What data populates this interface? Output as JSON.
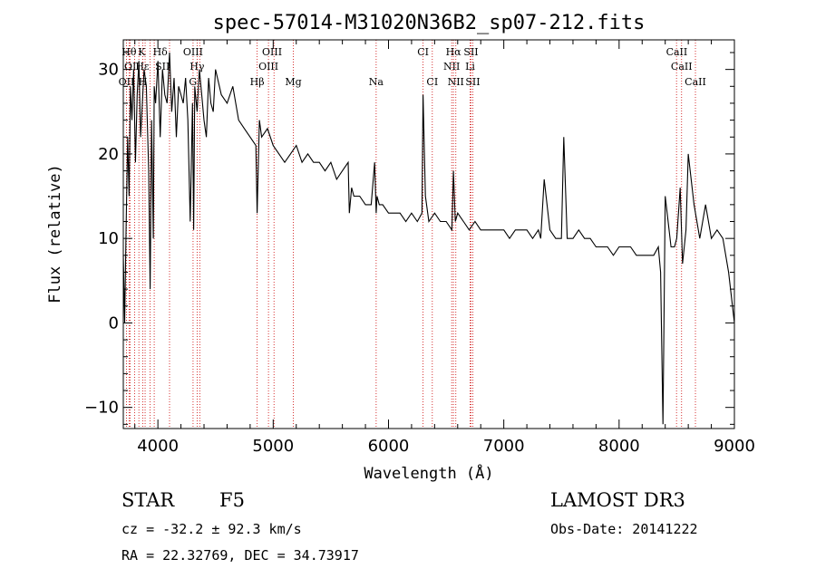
{
  "chart_data": {
    "type": "line",
    "title": "spec-57014-M31020N36B2_sp07-212.fits",
    "xlabel": "Wavelength (Å)",
    "ylabel": "Flux (relative)",
    "xlim": [
      3700,
      9000
    ],
    "ylim": [
      -12.5,
      33.5
    ],
    "xticks": [
      4000,
      5000,
      6000,
      7000,
      8000,
      9000
    ],
    "yticks": [
      -10,
      0,
      10,
      20,
      30
    ],
    "grid": false,
    "spectrum": {
      "x": [
        3700,
        3712,
        3725,
        3738,
        3750,
        3762,
        3775,
        3790,
        3805,
        3820,
        3835,
        3850,
        3865,
        3880,
        3900,
        3920,
        3933,
        3945,
        3960,
        3968,
        3980,
        4000,
        4020,
        4040,
        4060,
        4080,
        4101,
        4120,
        4140,
        4160,
        4180,
        4200,
        4220,
        4240,
        4260,
        4280,
        4300,
        4310,
        4320,
        4340,
        4360,
        4380,
        4400,
        4420,
        4440,
        4460,
        4480,
        4500,
        4550,
        4600,
        4650,
        4700,
        4750,
        4800,
        4850,
        4861,
        4880,
        4900,
        4950,
        5000,
        5050,
        5100,
        5150,
        5200,
        5250,
        5300,
        5350,
        5400,
        5450,
        5500,
        5550,
        5600,
        5650,
        5660,
        5680,
        5700,
        5750,
        5800,
        5850,
        5880,
        5893,
        5900,
        5920,
        5950,
        6000,
        6050,
        6100,
        6150,
        6200,
        6250,
        6290,
        6300,
        6320,
        6350,
        6400,
        6450,
        6500,
        6550,
        6563,
        6580,
        6600,
        6650,
        6700,
        6750,
        6800,
        6850,
        6900,
        6950,
        7000,
        7050,
        7100,
        7150,
        7200,
        7250,
        7300,
        7320,
        7350,
        7400,
        7450,
        7500,
        7520,
        7550,
        7600,
        7650,
        7700,
        7750,
        7800,
        7850,
        7900,
        7950,
        8000,
        8050,
        8100,
        8150,
        8200,
        8250,
        8300,
        8340,
        8360,
        8380,
        8400,
        8450,
        8480,
        8500,
        8530,
        8550,
        8580,
        8600,
        8650,
        8700,
        8750,
        8800,
        8850,
        8900,
        8950,
        9000
      ],
      "y": [
        8,
        0,
        12,
        22,
        15,
        28,
        24,
        30,
        19,
        27,
        31,
        22,
        26,
        30,
        28,
        18,
        4,
        24,
        10,
        28,
        26,
        31,
        22,
        30,
        27,
        26,
        32,
        25,
        29,
        22,
        28,
        27,
        26,
        29,
        24,
        12,
        26,
        11,
        28,
        25,
        30,
        27,
        24,
        22,
        29,
        26,
        25,
        30,
        27,
        26,
        28,
        24,
        23,
        22,
        21,
        13,
        24,
        22,
        23,
        21,
        20,
        19,
        20,
        21,
        19,
        20,
        19,
        19,
        18,
        19,
        17,
        18,
        19,
        13,
        16,
        15,
        15,
        14,
        14,
        19,
        13,
        15,
        14,
        14,
        13,
        13,
        13,
        12,
        13,
        12,
        13,
        27,
        15,
        12,
        13,
        12,
        12,
        11,
        18,
        12,
        13,
        12,
        11,
        12,
        11,
        11,
        11,
        11,
        11,
        10,
        11,
        11,
        11,
        10,
        11,
        10,
        17,
        11,
        10,
        10,
        22,
        10,
        10,
        11,
        10,
        10,
        9,
        9,
        9,
        8,
        9,
        9,
        9,
        8,
        8,
        8,
        8,
        9,
        6,
        -12,
        15,
        9,
        9,
        10,
        16,
        7,
        11,
        20,
        14,
        10,
        14,
        10,
        11,
        10,
        6,
        0
      ]
    },
    "emission_lines": [
      {
        "label": "Hθ",
        "x": 3750,
        "row": 0
      },
      {
        "label": "K",
        "x": 3860,
        "row": 0
      },
      {
        "label": "Hδ",
        "x": 4020,
        "row": 0
      },
      {
        "label": "OIII",
        "x": 4305,
        "row": 0
      },
      {
        "label": "OIII",
        "x": 4990,
        "row": 0
      },
      {
        "label": "CI",
        "x": 6300,
        "row": 0
      },
      {
        "label": "Hα",
        "x": 6563,
        "row": 0
      },
      {
        "label": "SII",
        "x": 6716,
        "row": 0
      },
      {
        "label": "CaII",
        "x": 8500,
        "row": 0
      },
      {
        "label": "OI",
        "x": 3760,
        "row": 1
      },
      {
        "label": "Hε",
        "x": 3865,
        "row": 1
      },
      {
        "label": "SII",
        "x": 4040,
        "row": 1
      },
      {
        "label": "Hγ",
        "x": 4340,
        "row": 1
      },
      {
        "label": "OIII",
        "x": 4959,
        "row": 1
      },
      {
        "label": "NII",
        "x": 6548,
        "row": 1
      },
      {
        "label": "Li",
        "x": 6708,
        "row": 1
      },
      {
        "label": "CaII",
        "x": 8542,
        "row": 1
      },
      {
        "label": "OII",
        "x": 3727,
        "row": 2
      },
      {
        "label": "H",
        "x": 3869,
        "row": 2
      },
      {
        "label": "G",
        "x": 4304,
        "row": 2
      },
      {
        "label": "Hβ",
        "x": 4861,
        "row": 2
      },
      {
        "label": "Mg",
        "x": 5175,
        "row": 2
      },
      {
        "label": "Na",
        "x": 5893,
        "row": 2
      },
      {
        "label": "CI",
        "x": 6380,
        "row": 2
      },
      {
        "label": "NII",
        "x": 6584,
        "row": 2
      },
      {
        "label": "SII",
        "x": 6731,
        "row": 2
      },
      {
        "label": "CaII",
        "x": 8662,
        "row": 2
      }
    ],
    "line_markers_x": [
      3727,
      3750,
      3760,
      3798,
      3835,
      3869,
      3889,
      3933,
      3968,
      4101,
      4305,
      4340,
      4363,
      4861,
      4959,
      5007,
      5175,
      5893,
      6300,
      6380,
      6548,
      6563,
      6584,
      6708,
      6716,
      6731,
      8498,
      8542,
      8662
    ]
  },
  "info": {
    "class": "STAR",
    "subclass": "F5",
    "cz": "cz = -32.2 ± 92.3 km/s",
    "radec": "RA =  22.32769, DEC =  34.73917",
    "survey": "LAMOST DR3",
    "obsdate": "Obs-Date: 20141222"
  },
  "colors": {
    "marker": "#cc0000",
    "spectrum": "#000000"
  }
}
